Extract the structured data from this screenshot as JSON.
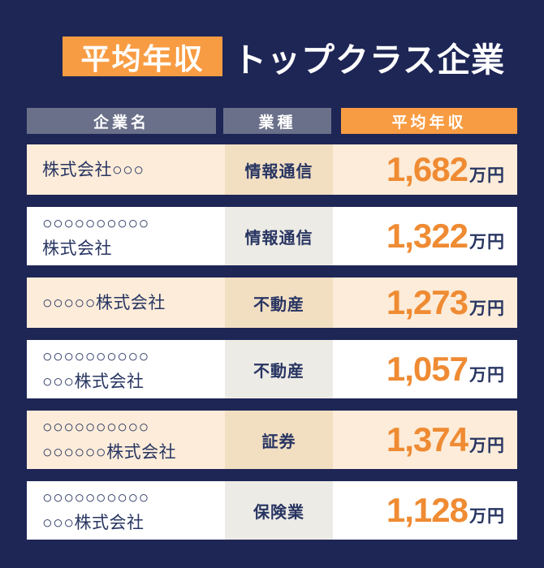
{
  "title": {
    "badge": "平均年収",
    "heading": "トップクラス企業"
  },
  "table": {
    "headers": [
      "企業名",
      "業種",
      "平均年収"
    ],
    "rows": [
      {
        "company_line1": "株式会社○○○",
        "company_line2": "",
        "industry": "情報通信",
        "income_value": "1,682",
        "income_unit": "万円"
      },
      {
        "company_line1": "○○○○○○○○○○",
        "company_line2": "株式会社",
        "industry": "情報通信",
        "income_value": "1,322",
        "income_unit": "万円"
      },
      {
        "company_line1": "○○○○○株式会社",
        "company_line2": "",
        "industry": "不動産",
        "income_value": "1,273",
        "income_unit": "万円"
      },
      {
        "company_line1": "○○○○○○○○○○",
        "company_line2": "○○○株式会社",
        "industry": "不動産",
        "income_value": "1,057",
        "income_unit": "万円"
      },
      {
        "company_line1": "○○○○○○○○○○",
        "company_line2": "○○○○○○株式会社",
        "industry": "証券",
        "income_value": "1,374",
        "income_unit": "万円"
      },
      {
        "company_line1": "○○○○○○○○○○",
        "company_line2": "○○○株式会社",
        "industry": "保険業",
        "income_value": "1,128",
        "income_unit": "万円"
      }
    ]
  },
  "colors": {
    "background_navy": "#1e2656",
    "accent_orange": "#f89c43",
    "number_orange": "#ef8b33",
    "header_gray": "#6a7089",
    "text_navy": "#283562",
    "row_cream": "#fcecd9",
    "row_white": "#ffffff",
    "industry_cell_cream": "#f2dfc2",
    "industry_cell_gray": "#edebe5"
  },
  "chart_data": {
    "type": "table",
    "title": "平均年収 トップクラス企業",
    "columns": [
      "企業名",
      "業種",
      "平均年収"
    ],
    "rows": [
      [
        "株式会社○○○",
        "情報通信",
        "1,682万円"
      ],
      [
        "○○○○○○○○○○株式会社",
        "情報通信",
        "1,322万円"
      ],
      [
        "○○○○○株式会社",
        "不動産",
        "1,273万円"
      ],
      [
        "○○○○○○○○○○○○○株式会社",
        "不動産",
        "1,057万円"
      ],
      [
        "○○○○○○○○○○○○○○○○株式会社",
        "証券",
        "1,374万円"
      ],
      [
        "○○○○○○○○○○○○○株式会社",
        "保険業",
        "1,128万円"
      ]
    ],
    "values_man_yen": [
      1682,
      1322,
      1273,
      1057,
      1374,
      1128
    ],
    "unit": "万円"
  }
}
